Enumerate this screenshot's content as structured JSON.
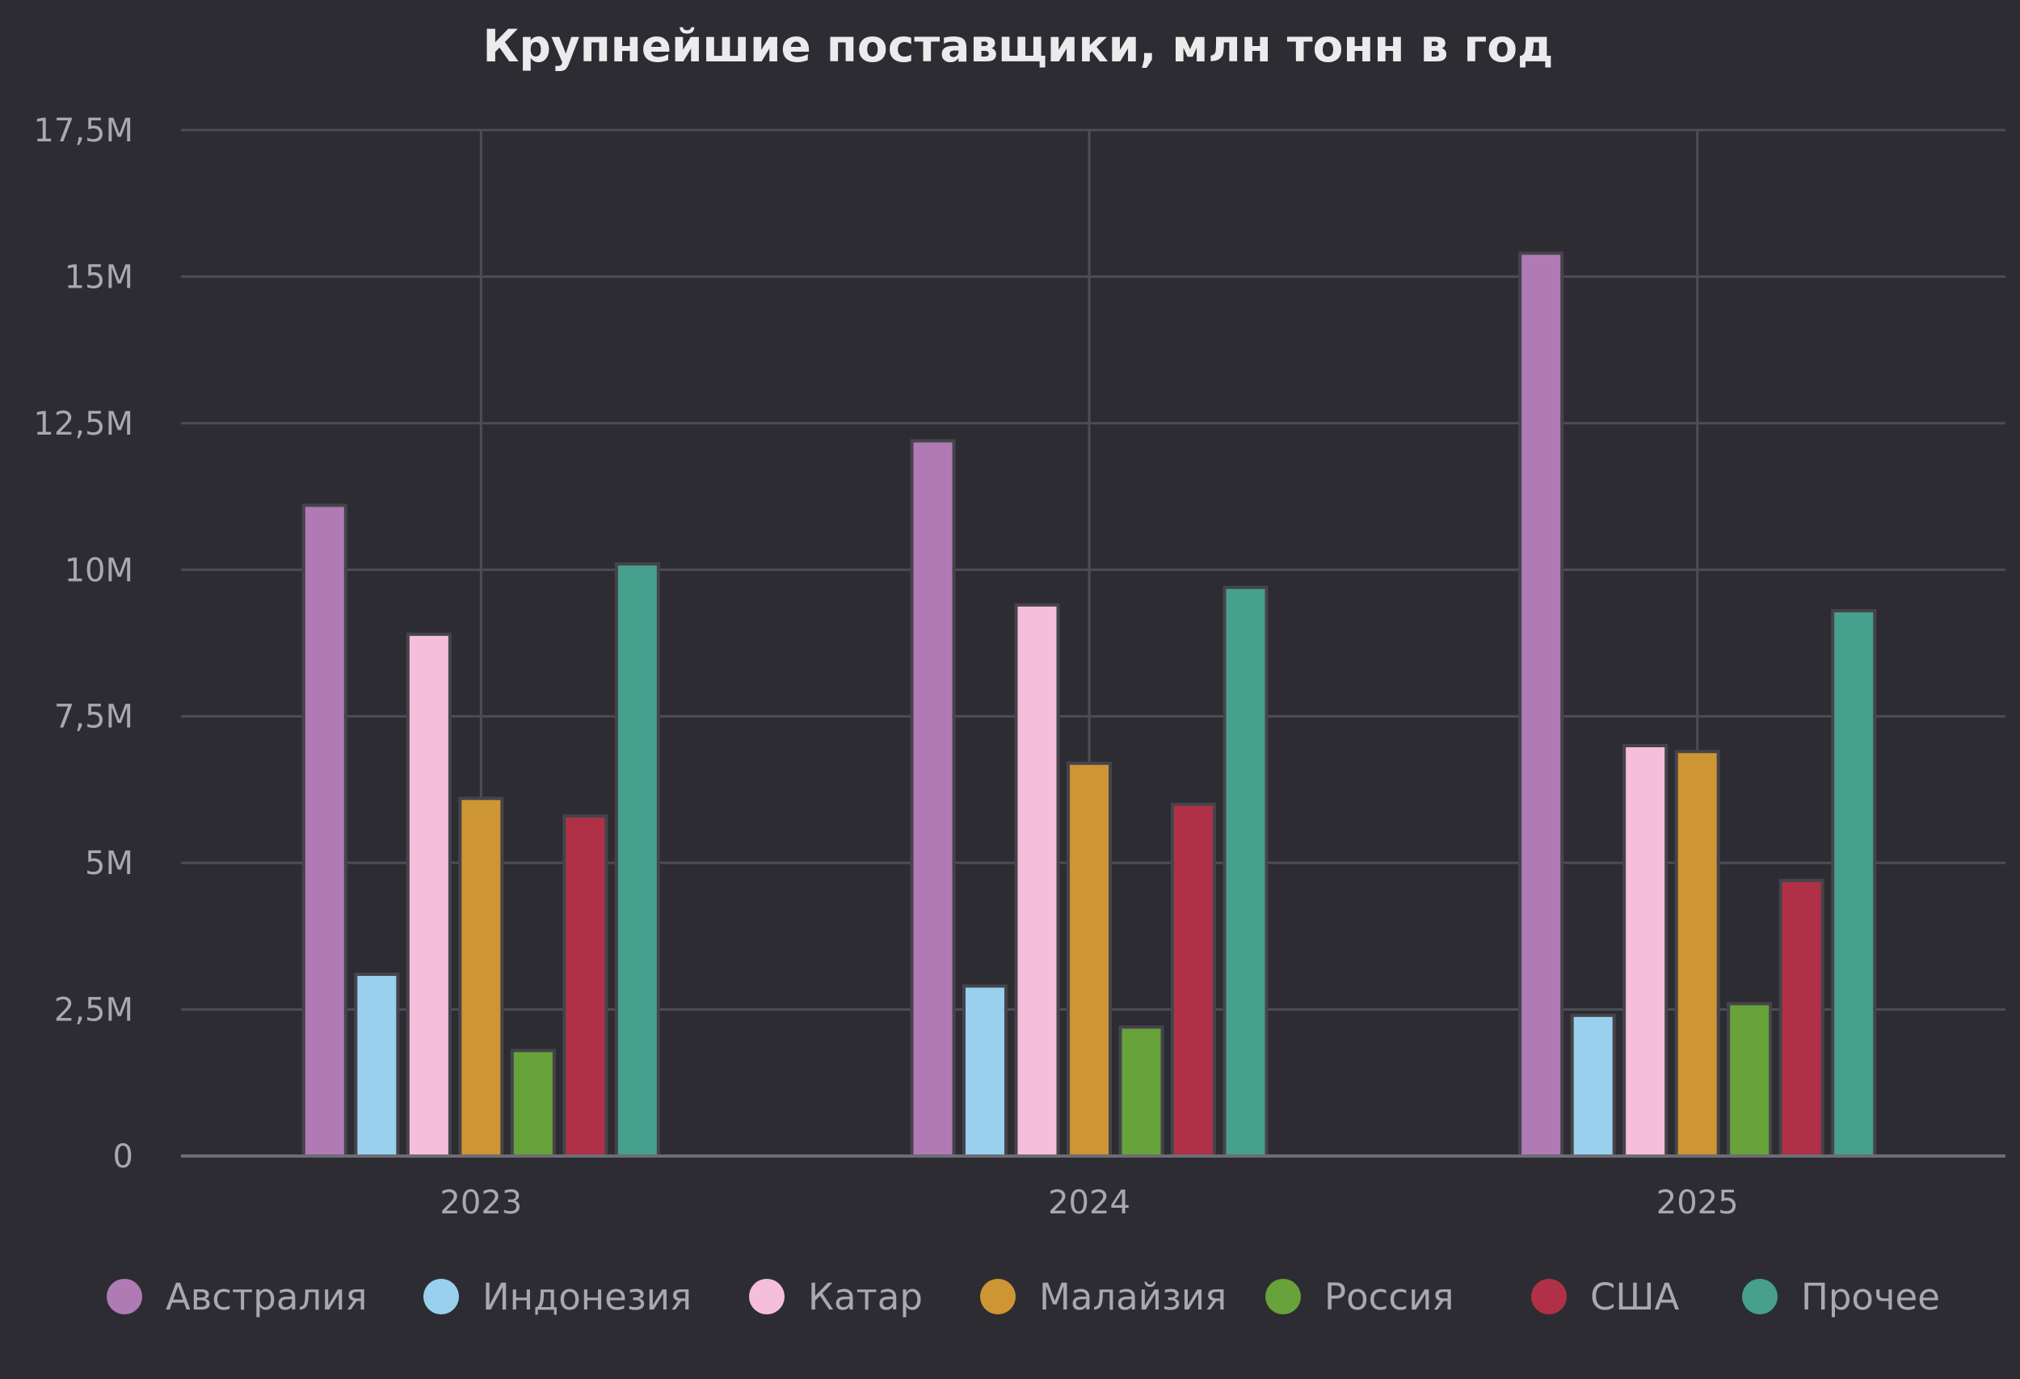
{
  "chart_data": {
    "type": "bar",
    "title": "Крупнейшие поставщики, млн тонн в год",
    "categories": [
      "2023",
      "2024",
      "2025"
    ],
    "series": [
      {
        "name": "Австралия",
        "color": "#b07ab4",
        "values": [
          11.1,
          12.2,
          15.4
        ]
      },
      {
        "name": "Индонезия",
        "color": "#98d0ee",
        "values": [
          3.1,
          2.9,
          2.4
        ]
      },
      {
        "name": "Катар",
        "color": "#f5bfdc",
        "values": [
          8.9,
          9.4,
          7.0
        ]
      },
      {
        "name": "Малайзия",
        "color": "#cd9533",
        "values": [
          6.1,
          6.7,
          6.9
        ]
      },
      {
        "name": "Россия",
        "color": "#67a23a",
        "values": [
          1.8,
          2.2,
          2.6
        ]
      },
      {
        "name": "США",
        "color": "#b03147",
        "values": [
          5.8,
          6.0,
          4.7
        ]
      },
      {
        "name": "Прочее",
        "color": "#479f8e",
        "values": [
          10.1,
          9.7,
          9.3
        ]
      }
    ],
    "ylim": [
      0,
      17.5
    ],
    "yticks": [
      0,
      2.5,
      5,
      7.5,
      10,
      12.5,
      15,
      17.5
    ],
    "ytick_labels": [
      "0",
      "2,5M",
      "5M",
      "7,5M",
      "10M",
      "12,5M",
      "15M",
      "17,5M"
    ],
    "xlabel": "",
    "ylabel": "",
    "grid": true,
    "legend_position": "bottom"
  }
}
